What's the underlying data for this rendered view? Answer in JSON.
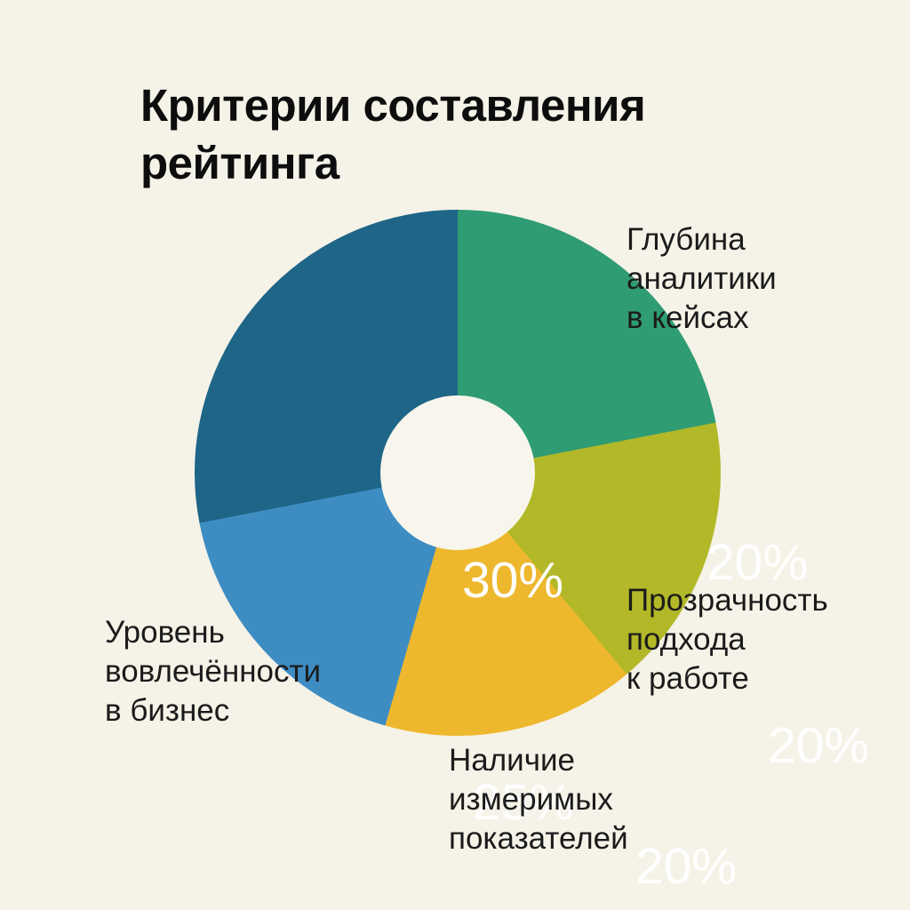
{
  "page": {
    "background": "#f5f2e8",
    "title": "Критерии составления рейтинга"
  },
  "chart_data": {
    "type": "pie",
    "subtype": "donut",
    "title": "Критерии составления рейтинга",
    "unit": "%",
    "background": "#f5f2e8",
    "hole_color": "#f8f6ec",
    "legend_position": "labels-outside-slices",
    "segments": [
      {
        "label": "Глубина аналитики в кейсах",
        "label_lines": [
          "Глубина",
          "аналитики",
          "в кейсах"
        ],
        "value": 20,
        "display": "20%",
        "color": "#2f9c73",
        "start_deg": 0,
        "end_deg": 79
      },
      {
        "label": "Прозрачность подхода к работе",
        "label_lines": [
          "Прозрачность",
          "подхода",
          "к работе"
        ],
        "value": 20,
        "display": "20%",
        "color": "#b2b827",
        "start_deg": 79,
        "end_deg": 140
      },
      {
        "label": "Наличие измеримых показателей",
        "label_lines": [
          "Наличие",
          "измеримых",
          "показателей"
        ],
        "value": 20,
        "display": "20%",
        "color": "#eeb82e",
        "start_deg": 140,
        "end_deg": 196
      },
      {
        "label": "Уровень вовлечённости в бизнес",
        "label_lines": [
          "Уровень",
          "вовлечённости",
          "в бизнес"
        ],
        "value": 25,
        "display": "25%",
        "color": "#3d8dc3",
        "start_deg": 196,
        "end_deg": 259
      },
      {
        "label": "",
        "label_lines": [],
        "value": 30,
        "display": "30%",
        "color": "#1e6588",
        "start_deg": 259,
        "end_deg": 360
      }
    ]
  }
}
